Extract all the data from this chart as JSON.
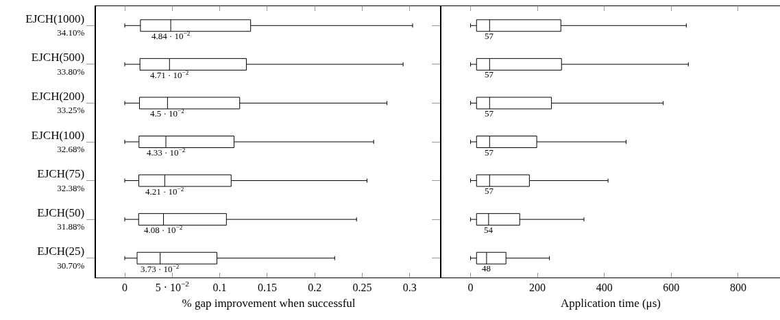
{
  "chart_data": [
    {
      "type": "box",
      "orientation": "horizontal",
      "xlabel": "% gap improvement when successful",
      "categories": [
        "EJCH(1000)\n34.10%",
        "EJCH(500)\n33.80%",
        "EJCH(200)\n33.25%",
        "EJCH(100)\n32.68%",
        "EJCH(75)\n32.38%",
        "EJCH(50)\n31.88%",
        "EJCH(25)\n30.70%"
      ],
      "boxes": [
        {
          "low": 0,
          "q1": 0.0165,
          "median": 0.0484,
          "q3": 0.1325,
          "high": 0.303
        },
        {
          "low": 0,
          "q1": 0.016,
          "median": 0.0471,
          "q3": 0.128,
          "high": 0.293
        },
        {
          "low": 0,
          "q1": 0.0155,
          "median": 0.045,
          "q3": 0.121,
          "high": 0.276
        },
        {
          "low": 0,
          "q1": 0.015,
          "median": 0.0433,
          "q3": 0.115,
          "high": 0.262
        },
        {
          "low": 0,
          "q1": 0.0148,
          "median": 0.0421,
          "q3": 0.112,
          "high": 0.255
        },
        {
          "low": 0,
          "q1": 0.0146,
          "median": 0.0408,
          "q3": 0.107,
          "high": 0.244
        },
        {
          "low": 0,
          "q1": 0.013,
          "median": 0.0373,
          "q3": 0.097,
          "high": 0.221
        }
      ],
      "value_labels": [
        "4.84 · 10$^{−2}$",
        "4.71 · 10$^{−2}$",
        "4.5 · 10$^{−2}$",
        "4.33 · 10$^{−2}$",
        "4.21 · 10$^{−2}$",
        "4.08 · 10$^{−2}$",
        "3.73 · 10$^{−2}$"
      ],
      "color": "#000000",
      "xlim": [
        -0.0303,
        0.3333
      ],
      "xticks": [
        0,
        {
          "value": 0.05,
          "label": "5 · 10$^{−2}$"
        },
        0.1,
        0.15,
        0.2,
        0.25,
        0.3
      ]
    },
    {
      "type": "box",
      "orientation": "horizontal",
      "xlabel": "Application time (μs)",
      "categories": [
        "EJCH(1000)\n34.10%",
        "EJCH(500)\n33.80%",
        "EJCH(200)\n33.25%",
        "EJCH(100)\n32.68%",
        "EJCH(75)\n32.38%",
        "EJCH(50)\n31.88%",
        "EJCH(25)\n30.70%"
      ],
      "boxes": [
        {
          "low": 0,
          "q1": 18,
          "median": 57,
          "q3": 270,
          "high": 645
        },
        {
          "low": 0,
          "q1": 18,
          "median": 57,
          "q3": 272,
          "high": 651
        },
        {
          "low": 0,
          "q1": 18,
          "median": 57,
          "q3": 242,
          "high": 576
        },
        {
          "low": 0,
          "q1": 18,
          "median": 57,
          "q3": 198,
          "high": 465
        },
        {
          "low": 0,
          "q1": 18,
          "median": 57,
          "q3": 176,
          "high": 411
        },
        {
          "low": 0,
          "q1": 18,
          "median": 54,
          "q3": 147,
          "high": 339
        },
        {
          "low": 0,
          "q1": 18,
          "median": 48,
          "q3": 106,
          "high": 236
        }
      ],
      "value_labels": [
        "57",
        "57",
        "57",
        "57",
        "57",
        "54",
        "48"
      ],
      "color": "#000000",
      "xlim": [
        -87,
        925
      ],
      "xticks": [
        0,
        200,
        400,
        600,
        800
      ],
      "tick_labels": "x"
    }
  ]
}
